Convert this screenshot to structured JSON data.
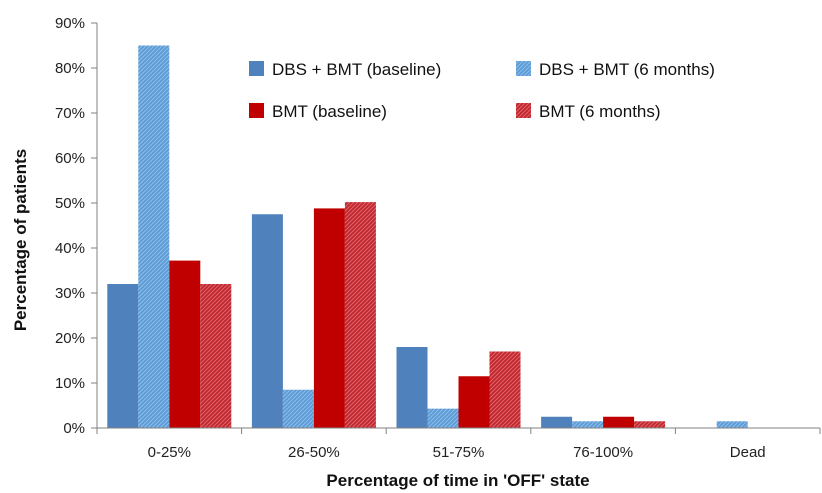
{
  "chart_data": {
    "type": "bar",
    "title": "",
    "xlabel": "Percentage of time in 'OFF' state",
    "ylabel": "Percentage of patients",
    "ylim": [
      0,
      90
    ],
    "yticks": [
      "0%",
      "10%",
      "20%",
      "30%",
      "40%",
      "50%",
      "60%",
      "70%",
      "80%",
      "90%"
    ],
    "ytick_values": [
      0,
      10,
      20,
      30,
      40,
      50,
      60,
      70,
      80,
      90
    ],
    "categories": [
      "0-25%",
      "26-50%",
      "51-75%",
      "76-100%",
      "Dead"
    ],
    "series": [
      {
        "name": "DBS + BMT (baseline)",
        "values": [
          32,
          47.5,
          18,
          2.5,
          0
        ],
        "color": "#4f81bd",
        "pattern": "solid"
      },
      {
        "name": "DBS + BMT (6 months)",
        "values": [
          85,
          8.5,
          4.3,
          1.5,
          1.5
        ],
        "color": "#5b9bd5",
        "pattern": "hatched"
      },
      {
        "name": "BMT (baseline)",
        "values": [
          37.2,
          48.8,
          11.5,
          2.5,
          0
        ],
        "color": "#c00000",
        "pattern": "solid"
      },
      {
        "name": "BMT (6 months)",
        "values": [
          32,
          50.2,
          17,
          1.5,
          0
        ],
        "color": "#c0272d",
        "pattern": "hatched"
      }
    ],
    "grid": false,
    "legend_position": "top-right"
  }
}
